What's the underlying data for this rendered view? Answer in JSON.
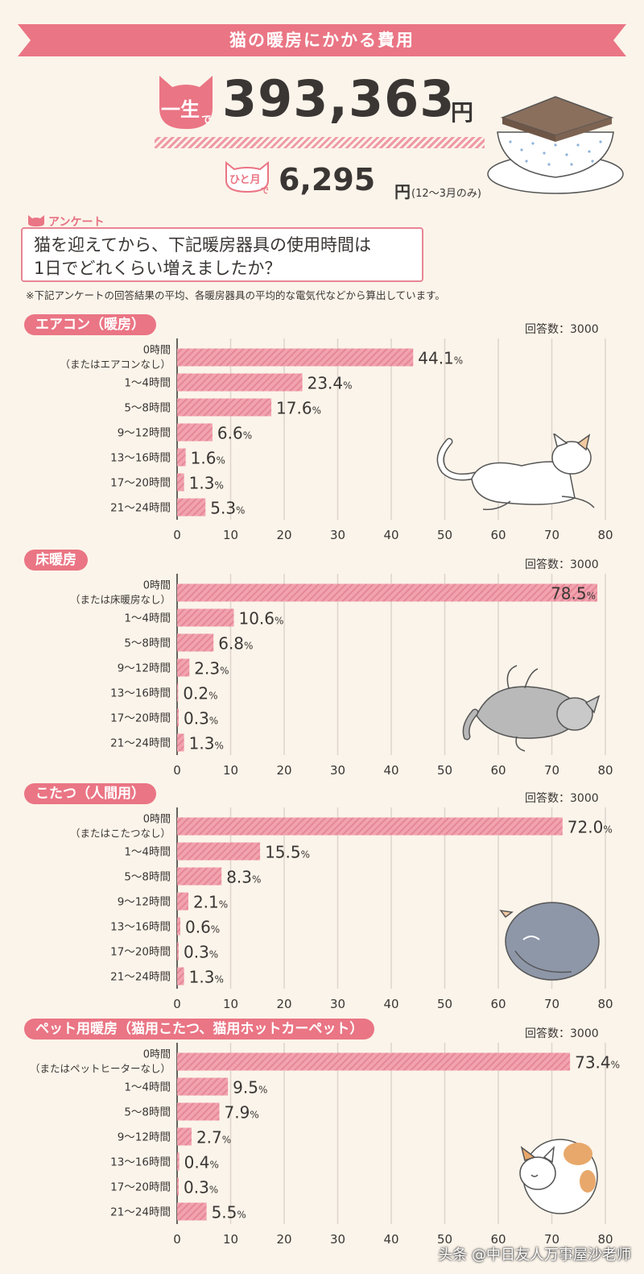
{
  "header": {
    "title": "猫の暖房にかかる費用",
    "lifetime_badge_main": "一生",
    "lifetime_badge_suffix": "で",
    "lifetime_amount": "393,363",
    "lifetime_unit": "円",
    "monthly_badge_main": "ひと月",
    "monthly_badge_suffix": "で",
    "monthly_amount": "6,295",
    "monthly_unit": "円",
    "monthly_note": "(12～3月のみ)"
  },
  "survey": {
    "tag": "アンケート",
    "question_line1": "猫を迎えてから、下記暖房器具の使用時間は",
    "question_line2": "1日でどれくらい増えましたか？",
    "footnote": "※下記アンケートの回答結果の平均、各暖房器具の平均的な電気代などから算出しています。"
  },
  "colors": {
    "accent": "#ea7584",
    "bar_fill": "#f1a3ae",
    "bar_stripe": "#e68797",
    "background": "#fbf4ea"
  },
  "chart_data": [
    {
      "type": "bar",
      "title": "エアコン（暖房）",
      "respondents": "回答数：3000",
      "categories": [
        "0時間（またはエアコンなし）",
        "1～4時間",
        "5～8時間",
        "9～12時間",
        "13～16時間",
        "17～20時間",
        "21～24時間"
      ],
      "category_lines": [
        [
          "0時間",
          "（またはエアコンなし）"
        ],
        [
          "1～4時間"
        ],
        [
          "5～8時間"
        ],
        [
          "9～12時間"
        ],
        [
          "13～16時間"
        ],
        [
          "17～20時間"
        ],
        [
          "21～24時間"
        ]
      ],
      "values": [
        44.1,
        23.4,
        17.6,
        6.6,
        1.6,
        1.3,
        5.3
      ],
      "unit": "%",
      "xlim": [
        0,
        80
      ],
      "xticks": [
        0,
        10,
        20,
        30,
        40,
        50,
        60,
        70,
        80
      ],
      "orientation": "horizontal",
      "grid": true
    },
    {
      "type": "bar",
      "title": "床暖房",
      "respondents": "回答数：3000",
      "categories": [
        "0時間（または床暖房なし）",
        "1～4時間",
        "5～8時間",
        "9～12時間",
        "13～16時間",
        "17～20時間",
        "21～24時間"
      ],
      "category_lines": [
        [
          "0時間",
          "（または床暖房なし）"
        ],
        [
          "1～4時間"
        ],
        [
          "5～8時間"
        ],
        [
          "9～12時間"
        ],
        [
          "13～16時間"
        ],
        [
          "17～20時間"
        ],
        [
          "21～24時間"
        ]
      ],
      "values": [
        78.5,
        10.6,
        6.8,
        2.3,
        0.2,
        0.3,
        1.3
      ],
      "unit": "%",
      "xlim": [
        0,
        80
      ],
      "xticks": [
        0,
        10,
        20,
        30,
        40,
        50,
        60,
        70,
        80
      ],
      "orientation": "horizontal",
      "grid": true
    },
    {
      "type": "bar",
      "title": "こたつ（人間用）",
      "respondents": "回答数：3000",
      "categories": [
        "0時間（またはこたつなし）",
        "1～4時間",
        "5～8時間",
        "9～12時間",
        "13～16時間",
        "17～20時間",
        "21～24時間"
      ],
      "category_lines": [
        [
          "0時間",
          "（またはこたつなし）"
        ],
        [
          "1～4時間"
        ],
        [
          "5～8時間"
        ],
        [
          "9～12時間"
        ],
        [
          "13～16時間"
        ],
        [
          "17～20時間"
        ],
        [
          "21～24時間"
        ]
      ],
      "values": [
        72.0,
        15.5,
        8.3,
        2.1,
        0.6,
        0.3,
        1.3
      ],
      "unit": "%",
      "xlim": [
        0,
        80
      ],
      "xticks": [
        0,
        10,
        20,
        30,
        40,
        50,
        60,
        70,
        80
      ],
      "orientation": "horizontal",
      "grid": true
    },
    {
      "type": "bar",
      "title": "ペット用暖房（猫用こたつ、猫用ホットカーペット）",
      "respondents": "回答数：3000",
      "categories": [
        "0時間（またはペットヒーターなし）",
        "1～4時間",
        "5～8時間",
        "9～12時間",
        "13～16時間",
        "17～20時間",
        "21～24時間"
      ],
      "category_lines": [
        [
          "0時間",
          "（またはペットヒーターなし）"
        ],
        [
          "1～4時間"
        ],
        [
          "5～8時間"
        ],
        [
          "9～12時間"
        ],
        [
          "13～16時間"
        ],
        [
          "17～20時間"
        ],
        [
          "21～24時間"
        ]
      ],
      "values": [
        73.4,
        9.5,
        7.9,
        2.7,
        0.4,
        0.3,
        5.5
      ],
      "unit": "%",
      "xlim": [
        0,
        80
      ],
      "xticks": [
        0,
        10,
        20,
        30,
        40,
        50,
        60,
        70,
        80
      ],
      "orientation": "horizontal",
      "grid": true
    }
  ],
  "watermark": "头条 @中日友人万事屋沙老师"
}
